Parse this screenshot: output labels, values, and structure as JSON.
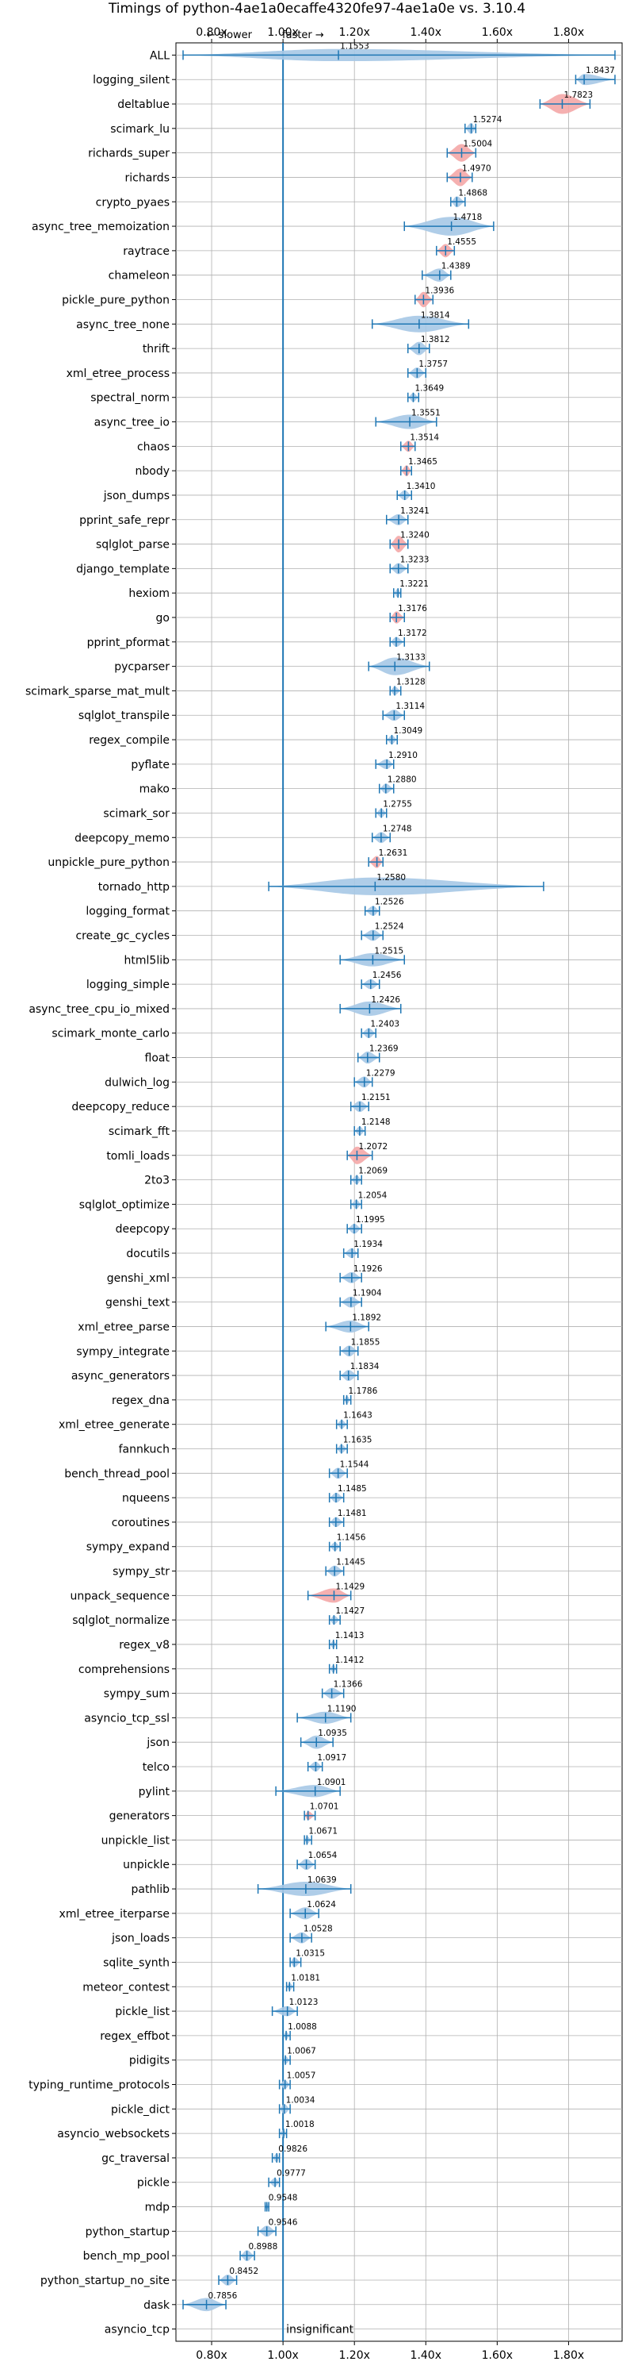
{
  "chart_data": {
    "type": "violin",
    "title": "Timings of python-4ae1a0ecaffe4320fe97-4ae1a0e vs. 3.10.4",
    "direction_labels": {
      "slower": "← slower",
      "faster": "faster →"
    },
    "xlim": [
      0.7,
      1.95
    ],
    "xticks": [
      0.8,
      1.0,
      1.2,
      1.4,
      1.6,
      1.8
    ],
    "xtick_labels": [
      "0.80x",
      "1.00x",
      "1.20x",
      "1.40x",
      "1.60x",
      "1.80x"
    ],
    "reference_line": 1.0,
    "grid": true,
    "colors": {
      "normal": "#a6c8e6",
      "edge": "#1f77b4",
      "highlight": "#f4a7a7"
    },
    "benchmarks": [
      {
        "name": "ALL",
        "value": 1.1553,
        "lo": 0.72,
        "hi": 1.93,
        "width": 0.55,
        "hl": false
      },
      {
        "name": "logging_silent",
        "value": 1.8437,
        "lo": 1.82,
        "hi": 1.93,
        "width": 0.5,
        "hl": false
      },
      {
        "name": "deltablue",
        "value": 1.7823,
        "lo": 1.72,
        "hi": 1.86,
        "width": 0.9,
        "hl": true
      },
      {
        "name": "scimark_lu",
        "value": 1.5274,
        "lo": 1.51,
        "hi": 1.54,
        "width": 0.5,
        "hl": false
      },
      {
        "name": "richards_super",
        "value": 1.5004,
        "lo": 1.46,
        "hi": 1.54,
        "width": 0.8,
        "hl": true
      },
      {
        "name": "richards",
        "value": 1.497,
        "lo": 1.46,
        "hi": 1.53,
        "width": 0.8,
        "hl": true
      },
      {
        "name": "crypto_pyaes",
        "value": 1.4868,
        "lo": 1.47,
        "hi": 1.51,
        "width": 0.5,
        "hl": false
      },
      {
        "name": "async_tree_memoization",
        "value": 1.4718,
        "lo": 1.34,
        "hi": 1.59,
        "width": 0.85,
        "hl": false
      },
      {
        "name": "raytrace",
        "value": 1.4555,
        "lo": 1.43,
        "hi": 1.48,
        "width": 0.6,
        "hl": true
      },
      {
        "name": "chameleon",
        "value": 1.4389,
        "lo": 1.39,
        "hi": 1.47,
        "width": 0.6,
        "hl": false
      },
      {
        "name": "pickle_pure_python",
        "value": 1.3936,
        "lo": 1.37,
        "hi": 1.42,
        "width": 0.7,
        "hl": true
      },
      {
        "name": "async_tree_none",
        "value": 1.3814,
        "lo": 1.25,
        "hi": 1.52,
        "width": 0.75,
        "hl": false
      },
      {
        "name": "thrift",
        "value": 1.3812,
        "lo": 1.35,
        "hi": 1.41,
        "width": 0.6,
        "hl": false
      },
      {
        "name": "xml_etree_process",
        "value": 1.3757,
        "lo": 1.35,
        "hi": 1.4,
        "width": 0.5,
        "hl": false
      },
      {
        "name": "spectral_norm",
        "value": 1.3649,
        "lo": 1.35,
        "hi": 1.38,
        "width": 0.4,
        "hl": false
      },
      {
        "name": "async_tree_io",
        "value": 1.3551,
        "lo": 1.26,
        "hi": 1.43,
        "width": 0.65,
        "hl": false
      },
      {
        "name": "chaos",
        "value": 1.3514,
        "lo": 1.33,
        "hi": 1.37,
        "width": 0.5,
        "hl": true
      },
      {
        "name": "nbody",
        "value": 1.3465,
        "lo": 1.33,
        "hi": 1.36,
        "width": 0.5,
        "hl": true
      },
      {
        "name": "json_dumps",
        "value": 1.341,
        "lo": 1.32,
        "hi": 1.36,
        "width": 0.45,
        "hl": false
      },
      {
        "name": "pprint_safe_repr",
        "value": 1.3241,
        "lo": 1.29,
        "hi": 1.35,
        "width": 0.5,
        "hl": false
      },
      {
        "name": "sqlglot_parse",
        "value": 1.324,
        "lo": 1.3,
        "hi": 1.35,
        "width": 0.75,
        "hl": true
      },
      {
        "name": "django_template",
        "value": 1.3233,
        "lo": 1.3,
        "hi": 1.35,
        "width": 0.5,
        "hl": false
      },
      {
        "name": "hexiom",
        "value": 1.3221,
        "lo": 1.31,
        "hi": 1.33,
        "width": 0.4,
        "hl": false
      },
      {
        "name": "go",
        "value": 1.3176,
        "lo": 1.3,
        "hi": 1.34,
        "width": 0.55,
        "hl": true
      },
      {
        "name": "pprint_pformat",
        "value": 1.3172,
        "lo": 1.3,
        "hi": 1.34,
        "width": 0.45,
        "hl": false
      },
      {
        "name": "pycparser",
        "value": 1.3133,
        "lo": 1.24,
        "hi": 1.41,
        "width": 0.8,
        "hl": false
      },
      {
        "name": "scimark_sparse_mat_mult",
        "value": 1.3128,
        "lo": 1.3,
        "hi": 1.33,
        "width": 0.4,
        "hl": false
      },
      {
        "name": "sqlglot_transpile",
        "value": 1.3114,
        "lo": 1.28,
        "hi": 1.34,
        "width": 0.5,
        "hl": false
      },
      {
        "name": "regex_compile",
        "value": 1.3049,
        "lo": 1.29,
        "hi": 1.32,
        "width": 0.4,
        "hl": false
      },
      {
        "name": "pyflate",
        "value": 1.291,
        "lo": 1.26,
        "hi": 1.31,
        "width": 0.45,
        "hl": false
      },
      {
        "name": "mako",
        "value": 1.288,
        "lo": 1.27,
        "hi": 1.31,
        "width": 0.45,
        "hl": false
      },
      {
        "name": "scimark_sor",
        "value": 1.2755,
        "lo": 1.26,
        "hi": 1.29,
        "width": 0.4,
        "hl": false
      },
      {
        "name": "deepcopy_memo",
        "value": 1.2748,
        "lo": 1.25,
        "hi": 1.3,
        "width": 0.5,
        "hl": false
      },
      {
        "name": "unpickle_pure_python",
        "value": 1.2631,
        "lo": 1.24,
        "hi": 1.28,
        "width": 0.55,
        "hl": true
      },
      {
        "name": "tornado_http",
        "value": 1.258,
        "lo": 0.96,
        "hi": 1.73,
        "width": 0.8,
        "hl": false
      },
      {
        "name": "logging_format",
        "value": 1.2526,
        "lo": 1.23,
        "hi": 1.27,
        "width": 0.45,
        "hl": false
      },
      {
        "name": "create_gc_cycles",
        "value": 1.2524,
        "lo": 1.22,
        "hi": 1.28,
        "width": 0.5,
        "hl": false
      },
      {
        "name": "html5lib",
        "value": 1.2515,
        "lo": 1.16,
        "hi": 1.34,
        "width": 0.6,
        "hl": false
      },
      {
        "name": "logging_simple",
        "value": 1.2456,
        "lo": 1.22,
        "hi": 1.27,
        "width": 0.45,
        "hl": false
      },
      {
        "name": "async_tree_cpu_io_mixed",
        "value": 1.2426,
        "lo": 1.16,
        "hi": 1.33,
        "width": 0.65,
        "hl": false
      },
      {
        "name": "scimark_monte_carlo",
        "value": 1.2403,
        "lo": 1.22,
        "hi": 1.26,
        "width": 0.45,
        "hl": false
      },
      {
        "name": "float",
        "value": 1.2369,
        "lo": 1.21,
        "hi": 1.27,
        "width": 0.55,
        "hl": false
      },
      {
        "name": "dulwich_log",
        "value": 1.2279,
        "lo": 1.2,
        "hi": 1.25,
        "width": 0.5,
        "hl": false
      },
      {
        "name": "deepcopy_reduce",
        "value": 1.2151,
        "lo": 1.19,
        "hi": 1.24,
        "width": 0.5,
        "hl": false
      },
      {
        "name": "scimark_fft",
        "value": 1.2148,
        "lo": 1.2,
        "hi": 1.23,
        "width": 0.4,
        "hl": false
      },
      {
        "name": "tomli_loads",
        "value": 1.2072,
        "lo": 1.18,
        "hi": 1.25,
        "width": 0.8,
        "hl": true
      },
      {
        "name": "2to3",
        "value": 1.2069,
        "lo": 1.19,
        "hi": 1.22,
        "width": 0.4,
        "hl": false
      },
      {
        "name": "sqlglot_optimize",
        "value": 1.2054,
        "lo": 1.19,
        "hi": 1.22,
        "width": 0.4,
        "hl": false
      },
      {
        "name": "deepcopy",
        "value": 1.1995,
        "lo": 1.18,
        "hi": 1.22,
        "width": 0.45,
        "hl": false
      },
      {
        "name": "docutils",
        "value": 1.1934,
        "lo": 1.17,
        "hi": 1.21,
        "width": 0.45,
        "hl": false
      },
      {
        "name": "genshi_xml",
        "value": 1.1926,
        "lo": 1.16,
        "hi": 1.22,
        "width": 0.5,
        "hl": false
      },
      {
        "name": "genshi_text",
        "value": 1.1904,
        "lo": 1.16,
        "hi": 1.22,
        "width": 0.5,
        "hl": false
      },
      {
        "name": "xml_etree_parse",
        "value": 1.1892,
        "lo": 1.12,
        "hi": 1.24,
        "width": 0.55,
        "hl": false
      },
      {
        "name": "sympy_integrate",
        "value": 1.1855,
        "lo": 1.16,
        "hi": 1.21,
        "width": 0.5,
        "hl": false
      },
      {
        "name": "async_generators",
        "value": 1.1834,
        "lo": 1.16,
        "hi": 1.21,
        "width": 0.5,
        "hl": false
      },
      {
        "name": "regex_dna",
        "value": 1.1786,
        "lo": 1.17,
        "hi": 1.19,
        "width": 0.35,
        "hl": false
      },
      {
        "name": "xml_etree_generate",
        "value": 1.1643,
        "lo": 1.15,
        "hi": 1.18,
        "width": 0.4,
        "hl": false
      },
      {
        "name": "fannkuch",
        "value": 1.1635,
        "lo": 1.15,
        "hi": 1.18,
        "width": 0.4,
        "hl": false
      },
      {
        "name": "bench_thread_pool",
        "value": 1.1544,
        "lo": 1.13,
        "hi": 1.18,
        "width": 0.5,
        "hl": false
      },
      {
        "name": "nqueens",
        "value": 1.1485,
        "lo": 1.13,
        "hi": 1.17,
        "width": 0.45,
        "hl": false
      },
      {
        "name": "coroutines",
        "value": 1.1481,
        "lo": 1.13,
        "hi": 1.17,
        "width": 0.45,
        "hl": false
      },
      {
        "name": "sympy_expand",
        "value": 1.1456,
        "lo": 1.13,
        "hi": 1.16,
        "width": 0.4,
        "hl": false
      },
      {
        "name": "sympy_str",
        "value": 1.1445,
        "lo": 1.12,
        "hi": 1.17,
        "width": 0.5,
        "hl": false
      },
      {
        "name": "unpack_sequence",
        "value": 1.1429,
        "lo": 1.07,
        "hi": 1.19,
        "width": 0.65,
        "hl": true
      },
      {
        "name": "sqlglot_normalize",
        "value": 1.1427,
        "lo": 1.13,
        "hi": 1.16,
        "width": 0.4,
        "hl": false
      },
      {
        "name": "regex_v8",
        "value": 1.1413,
        "lo": 1.13,
        "hi": 1.15,
        "width": 0.35,
        "hl": false
      },
      {
        "name": "comprehensions",
        "value": 1.1412,
        "lo": 1.13,
        "hi": 1.15,
        "width": 0.35,
        "hl": false
      },
      {
        "name": "sympy_sum",
        "value": 1.1366,
        "lo": 1.11,
        "hi": 1.17,
        "width": 0.5,
        "hl": false
      },
      {
        "name": "asyncio_tcp_ssl",
        "value": 1.119,
        "lo": 1.04,
        "hi": 1.19,
        "width": 0.55,
        "hl": false
      },
      {
        "name": "json",
        "value": 1.0935,
        "lo": 1.05,
        "hi": 1.14,
        "width": 0.6,
        "hl": false
      },
      {
        "name": "telco",
        "value": 1.0917,
        "lo": 1.07,
        "hi": 1.11,
        "width": 0.45,
        "hl": false
      },
      {
        "name": "pylint",
        "value": 1.0901,
        "lo": 0.98,
        "hi": 1.16,
        "width": 0.55,
        "hl": false
      },
      {
        "name": "generators",
        "value": 1.0701,
        "lo": 1.06,
        "hi": 1.09,
        "width": 0.4,
        "hl": true
      },
      {
        "name": "unpickle_list",
        "value": 1.0671,
        "lo": 1.06,
        "hi": 1.08,
        "width": 0.35,
        "hl": false
      },
      {
        "name": "unpickle",
        "value": 1.0654,
        "lo": 1.04,
        "hi": 1.09,
        "width": 0.5,
        "hl": false
      },
      {
        "name": "pathlib",
        "value": 1.0639,
        "lo": 0.93,
        "hi": 1.19,
        "width": 0.65,
        "hl": false
      },
      {
        "name": "xml_etree_iterparse",
        "value": 1.0624,
        "lo": 1.02,
        "hi": 1.1,
        "width": 0.55,
        "hl": false
      },
      {
        "name": "json_loads",
        "value": 1.0528,
        "lo": 1.02,
        "hi": 1.08,
        "width": 0.5,
        "hl": false
      },
      {
        "name": "sqlite_synth",
        "value": 1.0315,
        "lo": 1.02,
        "hi": 1.05,
        "width": 0.45,
        "hl": false
      },
      {
        "name": "meteor_contest",
        "value": 1.0181,
        "lo": 1.01,
        "hi": 1.03,
        "width": 0.35,
        "hl": false
      },
      {
        "name": "pickle_list",
        "value": 1.0123,
        "lo": 0.97,
        "hi": 1.04,
        "width": 0.45,
        "hl": false
      },
      {
        "name": "regex_effbot",
        "value": 1.0088,
        "lo": 1.0,
        "hi": 1.02,
        "width": 0.35,
        "hl": false
      },
      {
        "name": "pidigits",
        "value": 1.0067,
        "lo": 1.0,
        "hi": 1.02,
        "width": 0.35,
        "hl": false
      },
      {
        "name": "typing_runtime_protocols",
        "value": 1.0057,
        "lo": 0.99,
        "hi": 1.02,
        "width": 0.4,
        "hl": false
      },
      {
        "name": "pickle_dict",
        "value": 1.0034,
        "lo": 0.99,
        "hi": 1.02,
        "width": 0.45,
        "hl": false
      },
      {
        "name": "asyncio_websockets",
        "value": 1.0018,
        "lo": 0.99,
        "hi": 1.01,
        "width": 0.35,
        "hl": false
      },
      {
        "name": "gc_traversal",
        "value": 0.9826,
        "lo": 0.97,
        "hi": 0.99,
        "width": 0.4,
        "hl": false
      },
      {
        "name": "pickle",
        "value": 0.9777,
        "lo": 0.96,
        "hi": 0.99,
        "width": 0.4,
        "hl": false
      },
      {
        "name": "mdp",
        "value": 0.9548,
        "lo": 0.95,
        "hi": 0.96,
        "width": 0.35,
        "hl": false
      },
      {
        "name": "python_startup",
        "value": 0.9546,
        "lo": 0.93,
        "hi": 0.98,
        "width": 0.5,
        "hl": false
      },
      {
        "name": "bench_mp_pool",
        "value": 0.8988,
        "lo": 0.88,
        "hi": 0.92,
        "width": 0.5,
        "hl": false
      },
      {
        "name": "python_startup_no_site",
        "value": 0.8452,
        "lo": 0.82,
        "hi": 0.87,
        "width": 0.5,
        "hl": false
      },
      {
        "name": "dask",
        "value": 0.7856,
        "lo": 0.72,
        "hi": 0.84,
        "width": 0.6,
        "hl": false
      },
      {
        "name": "asyncio_tcp",
        "value": null,
        "lo": null,
        "hi": null,
        "width": 0,
        "hl": false,
        "note": "insignificant"
      }
    ]
  }
}
